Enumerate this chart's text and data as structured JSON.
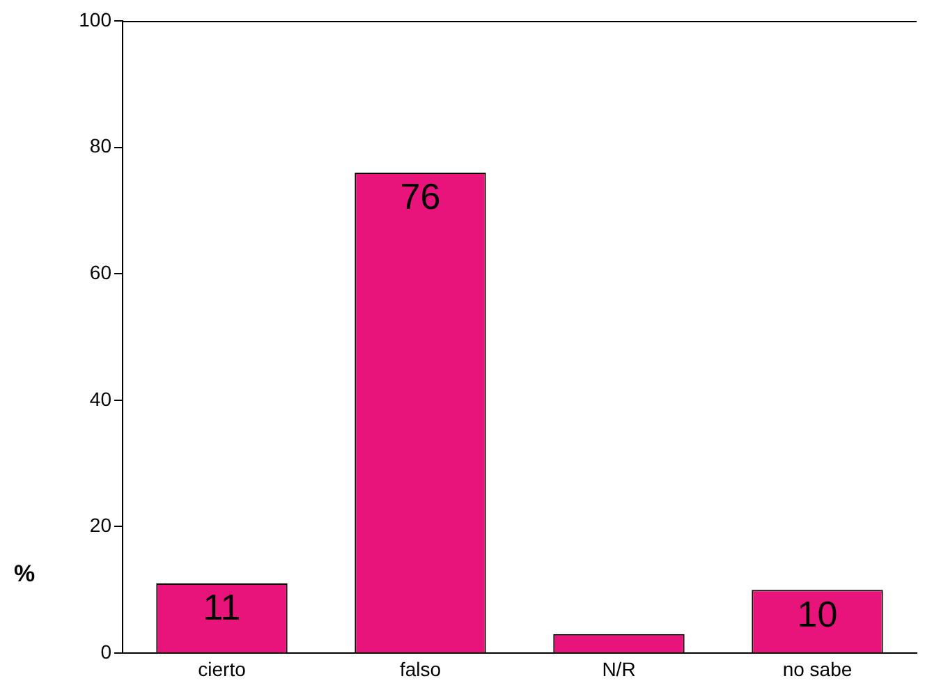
{
  "chart_data": {
    "type": "bar",
    "ylabel": "%",
    "categories": [
      "cierto",
      "falso",
      "N/R",
      "no sabe"
    ],
    "values": [
      11,
      76,
      3,
      10
    ],
    "value_labels": [
      "11",
      "76",
      null,
      "10"
    ],
    "color": "#e8137b",
    "ylim": [
      0,
      100
    ],
    "yticks": [
      0,
      20,
      40,
      60,
      80,
      100
    ],
    "grid": false,
    "legend": false
  }
}
